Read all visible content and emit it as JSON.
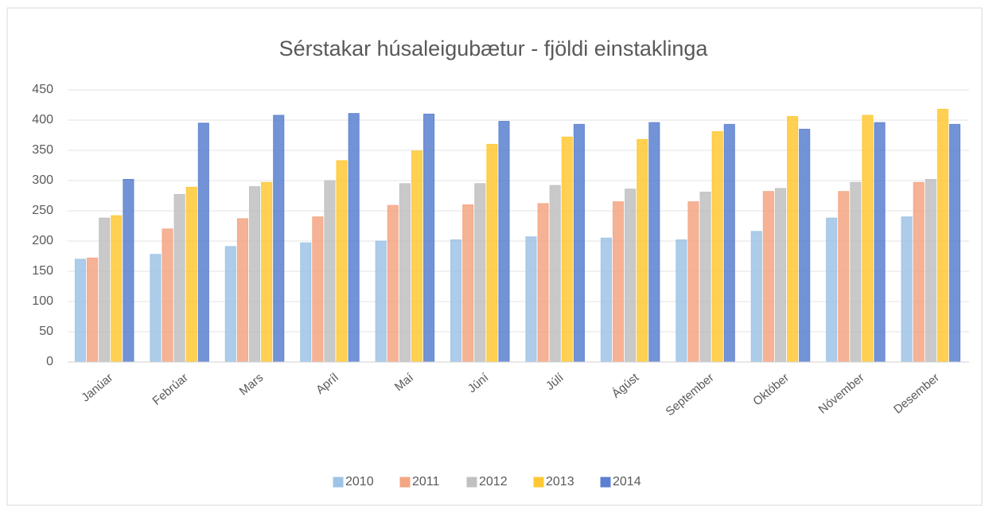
{
  "chart_data": {
    "type": "bar",
    "title": "Sérstakar húsaleigubætur - fjöldi einstaklinga",
    "categories": [
      "Janúar",
      "Febrúar",
      "Mars",
      "Apríl",
      "Maí",
      "Júní",
      "Júlí",
      "Ágúst",
      "September",
      "Október",
      "Nóvember",
      "Desember"
    ],
    "series": [
      {
        "name": "2010",
        "color": "#9dc3e6",
        "values": [
          170,
          178,
          191,
          197,
          200,
          202,
          207,
          205,
          202,
          216,
          238,
          240
        ]
      },
      {
        "name": "2011",
        "color": "#f4a582",
        "values": [
          172,
          220,
          237,
          240,
          259,
          260,
          262,
          265,
          265,
          282,
          282,
          297
        ]
      },
      {
        "name": "2012",
        "color": "#c0c0c0",
        "values": [
          238,
          277,
          290,
          300,
          295,
          295,
          292,
          286,
          281,
          287,
          297,
          302
        ]
      },
      {
        "name": "2013",
        "color": "#ffc833",
        "values": [
          242,
          289,
          297,
          333,
          349,
          360,
          372,
          368,
          381,
          406,
          408,
          418
        ]
      },
      {
        "name": "2014",
        "color": "#5b80d0",
        "values": [
          302,
          395,
          408,
          411,
          410,
          398,
          393,
          396,
          393,
          385,
          396,
          393
        ]
      }
    ],
    "ylim": [
      0,
      450
    ],
    "yticks": [
      0,
      50,
      100,
      150,
      200,
      250,
      300,
      350,
      400,
      450
    ],
    "grid": true,
    "legend": "bottom"
  }
}
